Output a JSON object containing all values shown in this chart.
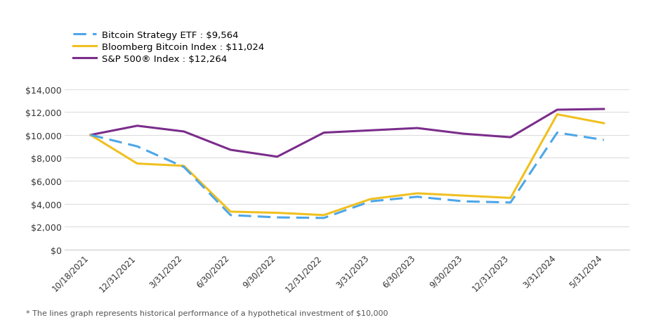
{
  "legend_labels": [
    "Bitcoin Strategy ETF : $9,564",
    "Bloomberg Bitcoin Index : $11,024",
    "S&P 500® Index : $12,264"
  ],
  "x_labels": [
    "10/18/2021",
    "12/31/2021",
    "3/31/2022",
    "6/30/2022",
    "9/30/2022",
    "12/31/2022",
    "3/31/2023",
    "6/30/2023",
    "9/30/2023",
    "12/31/2023",
    "3/31/2024",
    "5/31/2024"
  ],
  "series": {
    "btc_etf": [
      10000,
      9000,
      7200,
      3000,
      2800,
      2750,
      4200,
      4600,
      4200,
      4100,
      10200,
      9564
    ],
    "bloomberg": [
      10000,
      7500,
      7300,
      3300,
      3200,
      3000,
      4400,
      4900,
      4700,
      4500,
      11800,
      11024
    ],
    "sp500": [
      10000,
      10800,
      10300,
      8700,
      8100,
      10200,
      10400,
      10600,
      10100,
      9800,
      12200,
      12264
    ]
  },
  "colors": {
    "btc_etf": "#4da6e8",
    "bloomberg": "#f0c020",
    "sp500": "#7b2d8b"
  },
  "footnote": "* The lines graph represents historical performance of a hypothetical investment of $10,000",
  "ylim": [
    0,
    14000
  ],
  "yticks": [
    0,
    2000,
    4000,
    6000,
    8000,
    10000,
    12000,
    14000
  ]
}
